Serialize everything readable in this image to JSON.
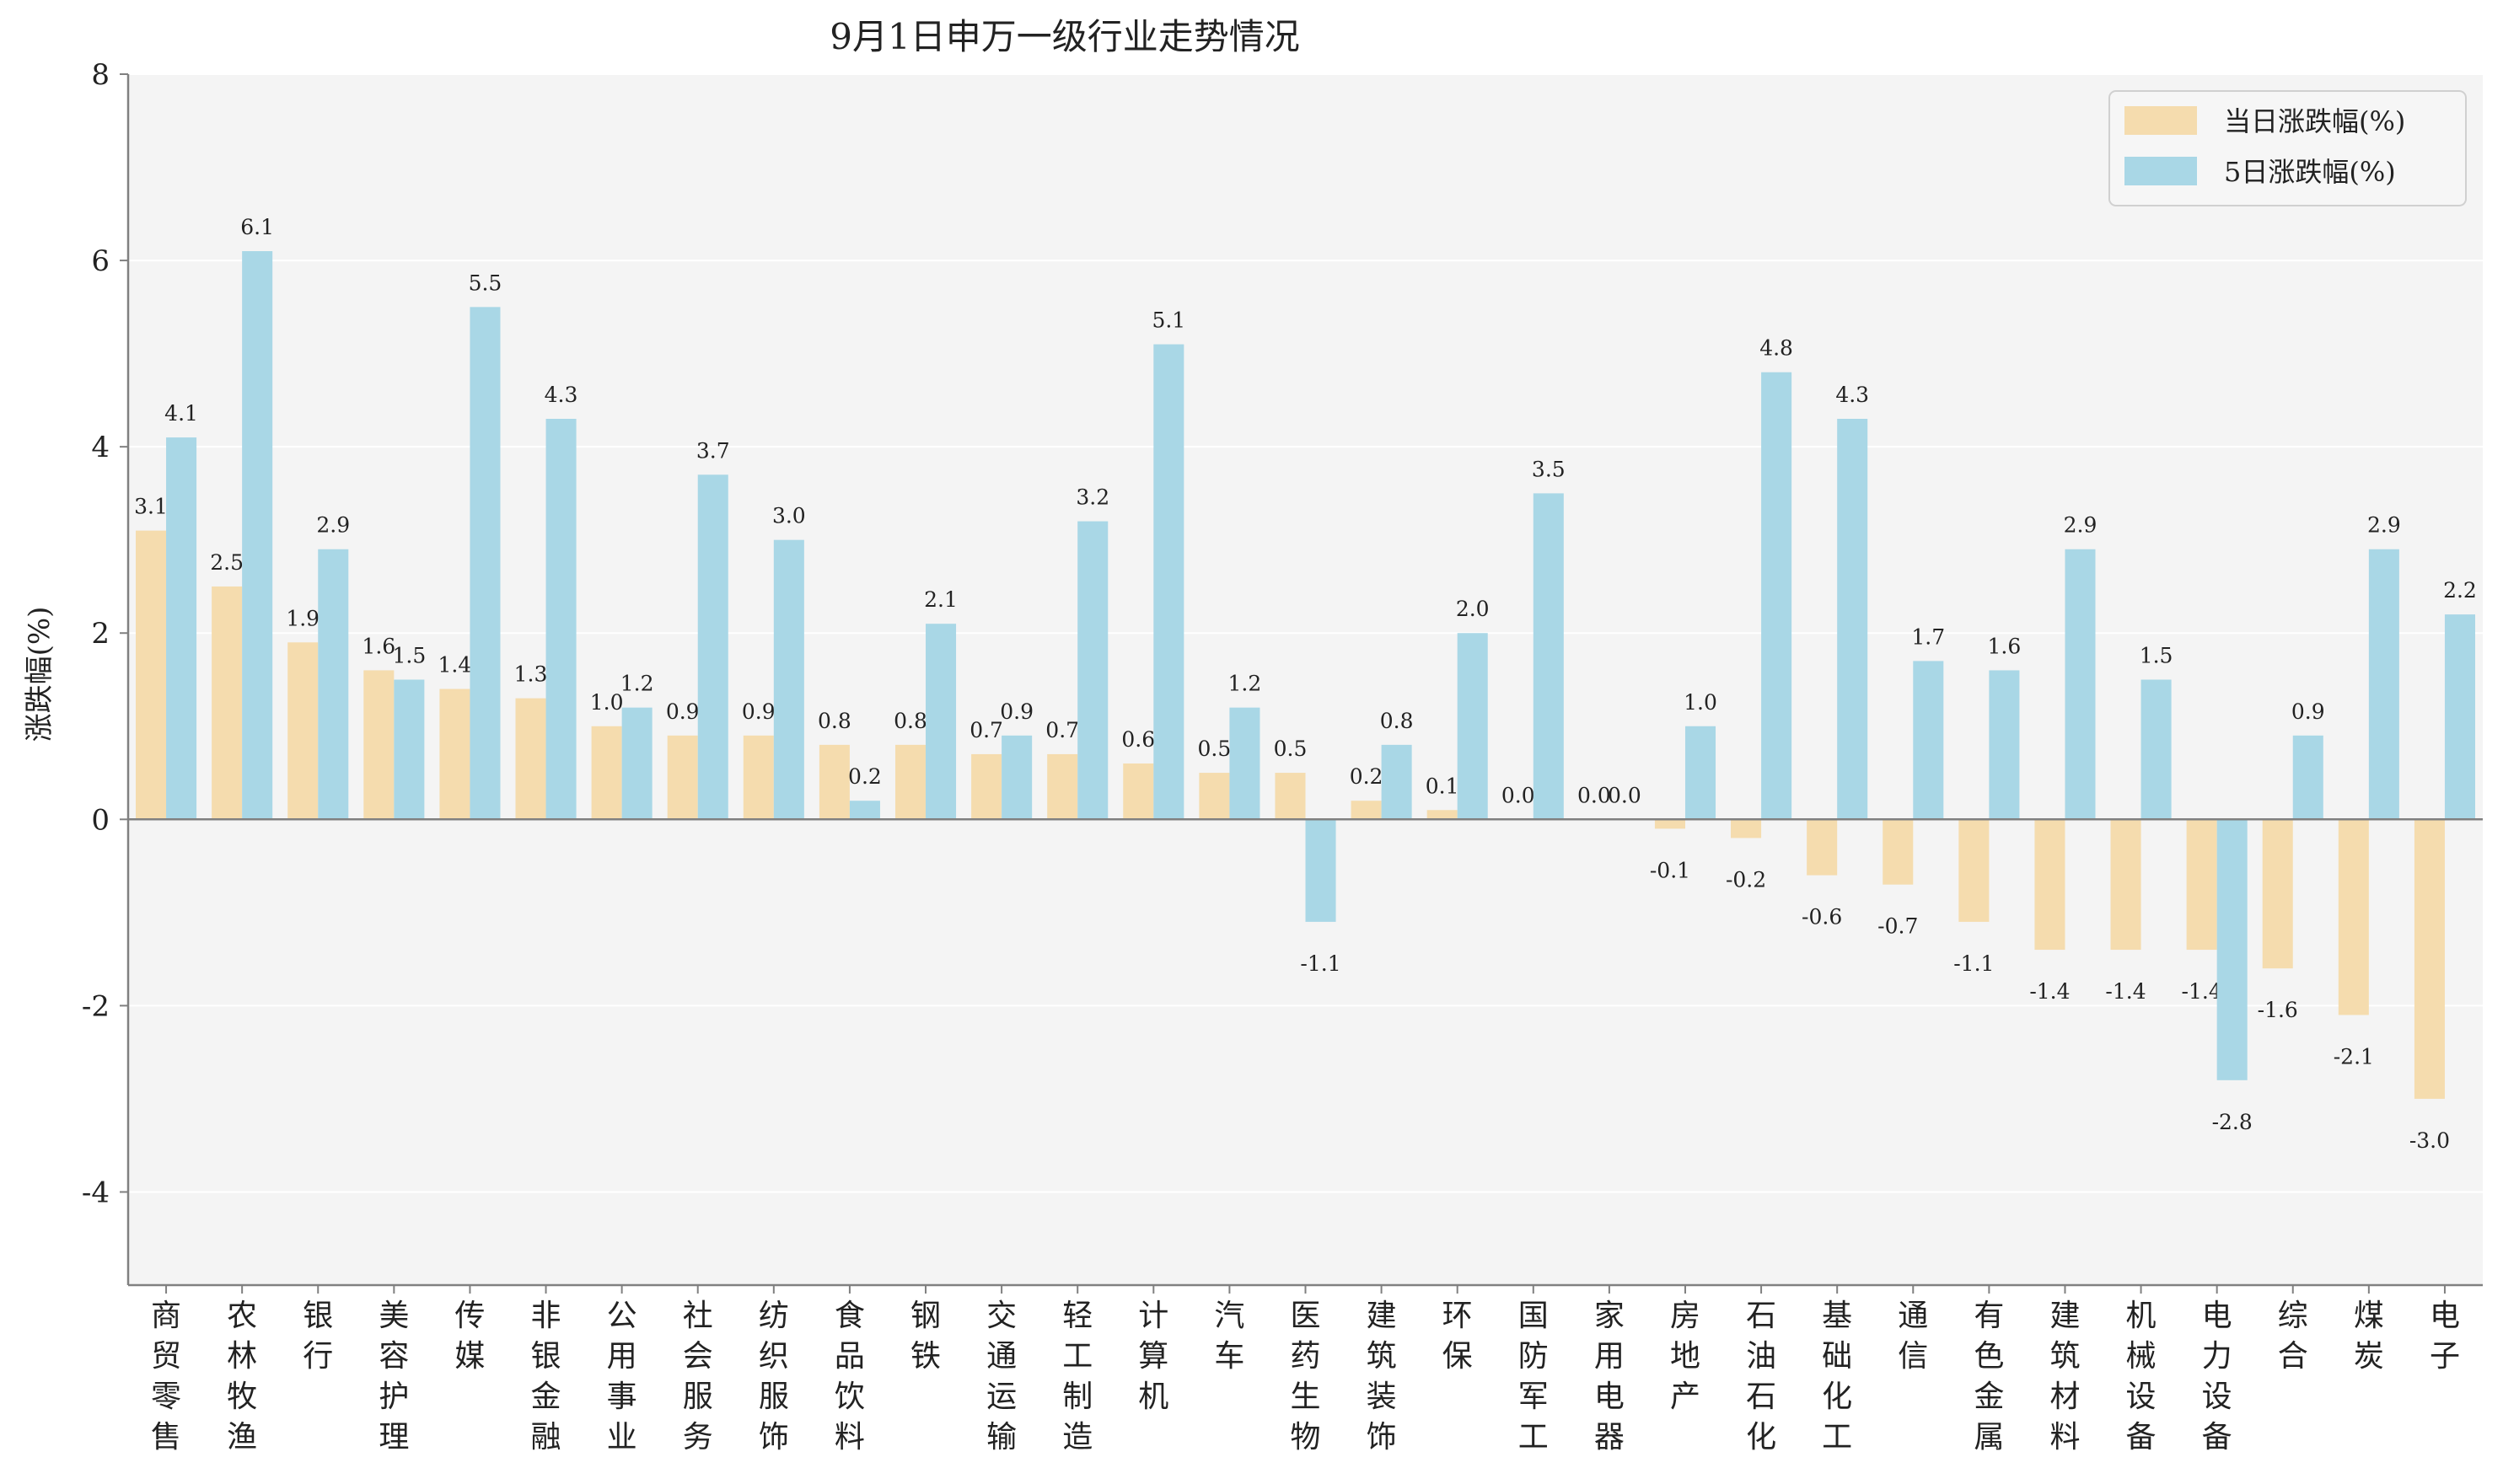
{
  "chart_data": {
    "type": "bar",
    "title": "9月1日申万一级行业走势情况",
    "ylabel": "涨跌幅(%)",
    "xlabel": "",
    "ylim": [
      -5,
      8
    ],
    "yticks": [
      -4,
      -2,
      0,
      2,
      4,
      6,
      8
    ],
    "grid": true,
    "legend_position": "top-right",
    "categories": [
      "商贸零售",
      "农林牧渔",
      "银行",
      "美容护理",
      "传媒",
      "非银金融",
      "公用事业",
      "社会服务",
      "纺织服饰",
      "食品饮料",
      "钢铁",
      "交通运输",
      "轻工制造",
      "计算机",
      "汽车",
      "医药生物",
      "建筑装饰",
      "环保",
      "国防军工",
      "家用电器",
      "房地产",
      "石油石化",
      "基础化工",
      "通信",
      "有色金属",
      "建筑材料",
      "机械设备",
      "电力设备",
      "综合",
      "煤炭",
      "电子"
    ],
    "series": [
      {
        "name": "当日涨跌幅(%)",
        "color": "#f5dcae",
        "values": [
          3.1,
          2.5,
          1.9,
          1.6,
          1.4,
          1.3,
          1.0,
          0.9,
          0.9,
          0.8,
          0.8,
          0.7,
          0.7,
          0.6,
          0.5,
          0.5,
          0.2,
          0.1,
          0.0,
          0.0,
          -0.1,
          -0.2,
          -0.6,
          -0.7,
          -1.1,
          -1.4,
          -1.4,
          -1.4,
          -1.6,
          -2.1,
          -3.0
        ]
      },
      {
        "name": "5日涨跌幅(%)",
        "color": "#a9d7e6",
        "values": [
          4.1,
          6.1,
          2.9,
          1.5,
          5.5,
          4.3,
          1.2,
          3.7,
          3.0,
          0.2,
          2.1,
          0.9,
          3.2,
          5.1,
          1.2,
          -1.1,
          0.8,
          2.0,
          3.5,
          0.0,
          1.0,
          4.8,
          4.3,
          1.7,
          1.6,
          2.9,
          1.5,
          -2.8,
          0.9,
          2.9,
          2.2
        ]
      }
    ],
    "colors": {
      "plot_background": "#f4f4f4",
      "grid": "#ffffff",
      "axis": "#808080"
    }
  }
}
